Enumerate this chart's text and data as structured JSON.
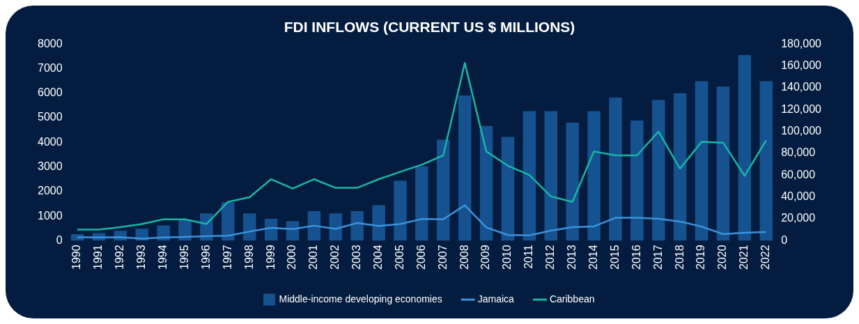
{
  "chart_data": {
    "type": "bar",
    "title": "FDI INFLOWS (CURRENT US $ MILLIONS)",
    "categories": [
      "1990",
      "1991",
      "1992",
      "1993",
      "1994",
      "1995",
      "1996",
      "1997",
      "1998",
      "1999",
      "2000",
      "2001",
      "2002",
      "2003",
      "2004",
      "2005",
      "2006",
      "2007",
      "2008",
      "2009",
      "2010",
      "2011",
      "2012",
      "2013",
      "2014",
      "2015",
      "2016",
      "2017",
      "2018",
      "2019",
      "2020",
      "2021",
      "2022"
    ],
    "series": [
      {
        "name": "Middle-income developing economies",
        "axis": "y2",
        "color": "#15528f",
        "values": [
          6000,
          7000,
          9000,
          11000,
          14000,
          19000,
          25000,
          35000,
          25000,
          20000,
          18000,
          27000,
          25000,
          27000,
          32500,
          55000,
          68000,
          92500,
          133000,
          105000,
          95000,
          118500,
          118500,
          108000,
          118500,
          131000,
          110000,
          129000,
          135000,
          146000,
          141000,
          170000,
          146000
        ]
      },
      {
        "name": "Jamaica",
        "type": "line",
        "color": "#3b93dd",
        "values": [
          140,
          130,
          140,
          80,
          130,
          150,
          180,
          200,
          370,
          520,
          470,
          610,
          480,
          720,
          600,
          680,
          880,
          870,
          1440,
          540,
          230,
          220,
          410,
          550,
          580,
          930,
          930,
          890,
          780,
          570,
          270,
          320,
          350
        ]
      },
      {
        "name": "Caribbean",
        "type": "line",
        "color": "#19b5a8",
        "values": [
          450,
          450,
          550,
          680,
          870,
          870,
          680,
          1580,
          1770,
          2500,
          2120,
          2500,
          2150,
          2150,
          2500,
          2800,
          3090,
          3470,
          7230,
          3630,
          3050,
          2670,
          1800,
          1580,
          3630,
          3470,
          3470,
          4440,
          2930,
          4020,
          3990,
          2640,
          4080
        ]
      }
    ],
    "ylim": [
      0,
      8000
    ],
    "yticks": [
      0,
      1000,
      2000,
      3000,
      4000,
      5000,
      6000,
      7000,
      8000
    ],
    "y2lim": [
      0,
      180000
    ],
    "y2ticks": [
      {
        "value": 0,
        "label": "0"
      },
      {
        "value": 20000,
        "label": "20,000"
      },
      {
        "value": 40000,
        "label": "40,000"
      },
      {
        "value": 60000,
        "label": "60,000"
      },
      {
        "value": 80000,
        "label": "80,000"
      },
      {
        "value": 100000,
        "label": "100,000"
      },
      {
        "value": 120000,
        "label": "120,000"
      },
      {
        "value": 140000,
        "label": "140,000"
      },
      {
        "value": 160000,
        "label": "160,000"
      },
      {
        "value": 180000,
        "label": "180,000"
      }
    ],
    "grid": false,
    "legend": "bottom",
    "marker": "none"
  }
}
